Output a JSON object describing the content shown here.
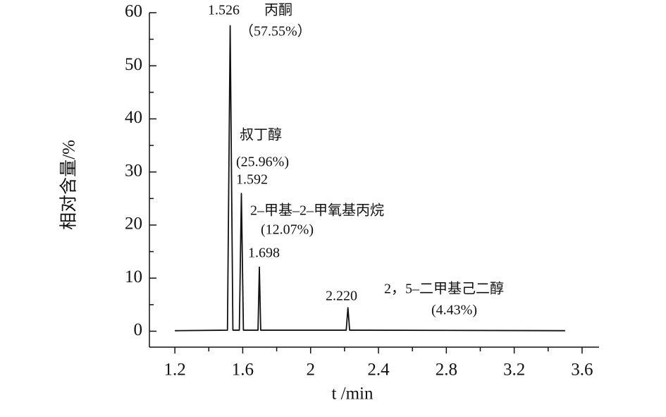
{
  "chart_data": {
    "type": "line",
    "xlabel": "t /min",
    "ylabel": "相对含量/%",
    "x": [
      1.2,
      1.51,
      1.526,
      1.542,
      1.58,
      1.592,
      1.604,
      1.69,
      1.698,
      1.706,
      2.21,
      2.22,
      2.23,
      3.5
    ],
    "series": [
      {
        "color": "#111111",
        "values": [
          0.1,
          0.2,
          57.55,
          0.2,
          0.2,
          25.96,
          0.2,
          0.2,
          12.07,
          0.2,
          0.2,
          4.43,
          0.2,
          0.1
        ]
      }
    ],
    "xlim": [
      1.05,
      3.7
    ],
    "ylim": [
      -3,
      60
    ],
    "xticks": [
      1.2,
      1.6,
      2.0,
      2.4,
      2.8,
      3.2,
      3.6
    ],
    "xminorticks": [
      1.4,
      1.8,
      2.2,
      2.6,
      3.0,
      3.4
    ],
    "yticks": [
      0,
      10,
      20,
      30,
      40,
      50,
      60
    ],
    "yminorticks": [
      5,
      15,
      25,
      35,
      45,
      55
    ],
    "annotations": [
      "1.526",
      "丙酮",
      "（57.55%）",
      "叔丁醇",
      "(25.96%)",
      "1.592",
      "2–甲基–2–甲氧基丙烷",
      "(12.07%)",
      "1.698",
      "2.220",
      "2，5–二甲基己二醇",
      "(4.43%)"
    ]
  }
}
